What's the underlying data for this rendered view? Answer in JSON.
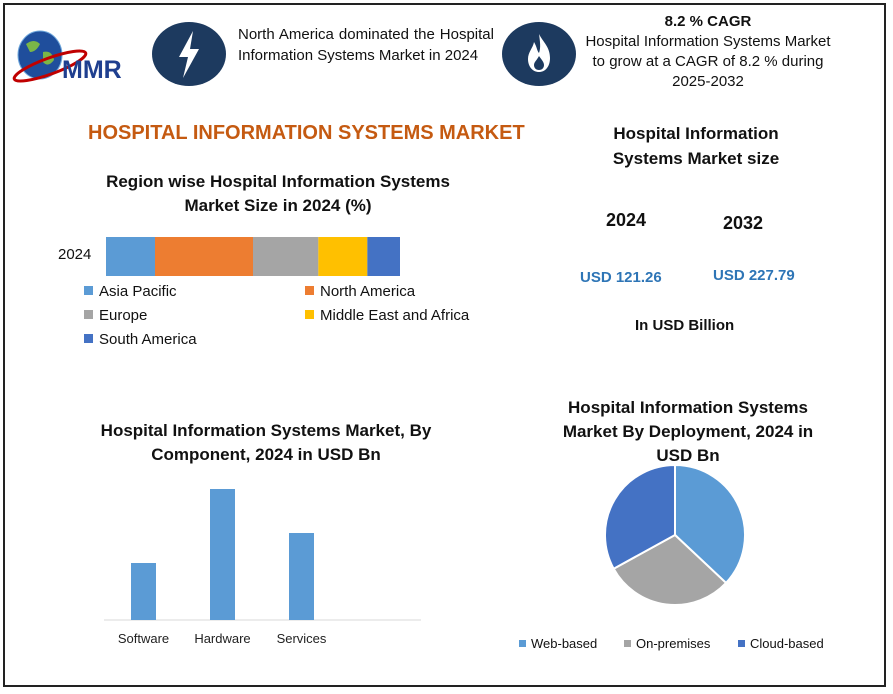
{
  "header": {
    "logo_text": "MMR",
    "note_left": "North America dominated the Hospital Information Systems Market in 2024",
    "cagr_head": "8.2 % CAGR",
    "cagr_body": "Hospital Information Systems Market to grow at a CAGR of 8.2 % during 2025-2032",
    "icons": [
      "lightning-bolt-icon",
      "flame-icon",
      "globe-logo"
    ]
  },
  "main_title": "HOSPITAL INFORMATION SYSTEMS MARKET",
  "market_size": {
    "title": "Hospital Information Systems Market size",
    "year_a": "2024",
    "year_b": "2032",
    "value_a": "USD 121.26",
    "value_b": "USD 227.79",
    "unit": "In USD Billion"
  },
  "chart_data": [
    {
      "type": "bar",
      "orientation": "horizontal-stacked",
      "title": "Region wise Hospital Information Systems Market Size in 2024 (%)",
      "categories": [
        "2024"
      ],
      "series": [
        {
          "name": "Asia Pacific",
          "values": [
            15
          ],
          "color": "#5b9bd5"
        },
        {
          "name": "North America",
          "values": [
            30
          ],
          "color": "#ed7d31"
        },
        {
          "name": "Europe",
          "values": [
            20
          ],
          "color": "#a5a5a5"
        },
        {
          "name": "Middle East and Africa",
          "values": [
            15
          ],
          "color": "#ffc000"
        },
        {
          "name": "South America",
          "values": [
            10
          ],
          "color": "#4472c4"
        }
      ],
      "legend_position": "bottom",
      "grid": false
    },
    {
      "type": "bar",
      "title": "Hospital Information Systems Market, By Component, 2024 in USD Bn",
      "categories": [
        "Software",
        "Hardware",
        "Services"
      ],
      "series": [
        {
          "values": [
            57,
            131,
            87
          ],
          "color": "#5b9bd5"
        }
      ],
      "ylim": [
        0,
        140
      ],
      "grid": false
    },
    {
      "type": "pie",
      "title": "Hospital Information Systems Market By Deployment, 2024 in USD Bn",
      "labels": [
        "Web-based",
        "On-premises",
        "Cloud-based"
      ],
      "values": [
        37,
        30,
        33
      ],
      "colors": [
        "#5b9bd5",
        "#a5a5a5",
        "#4472c4"
      ],
      "legend_position": "bottom"
    }
  ]
}
